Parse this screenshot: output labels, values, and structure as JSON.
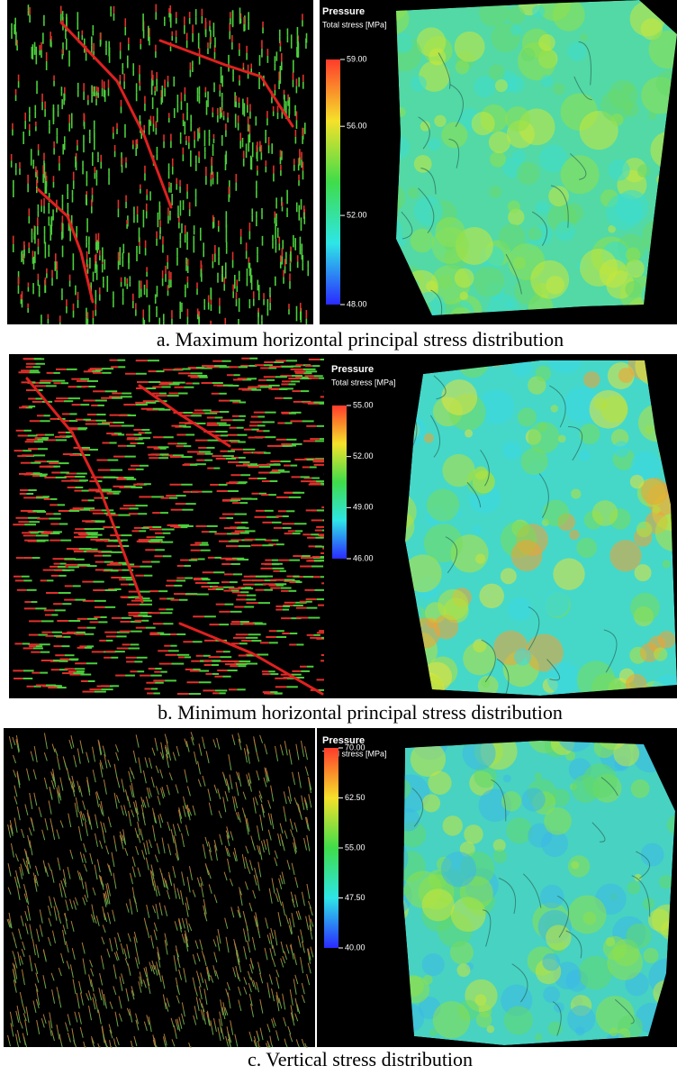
{
  "panels": [
    {
      "caption": "a. Maximum horizontal principal stress distribution",
      "legend": {
        "title": "Pressure",
        "subtitle": "Total stress [MPa]",
        "ticks": [
          {
            "value": 59,
            "label": "59.00"
          },
          {
            "value": 56,
            "label": "56.00"
          },
          {
            "value": 52,
            "label": "52.00"
          },
          {
            "value": 48,
            "label": "48.00"
          }
        ]
      }
    },
    {
      "caption": "b. Minimum horizontal principal stress distribution",
      "legend": {
        "title": "Pressure",
        "subtitle": "Total stress [MPa]",
        "ticks": [
          {
            "value": 55,
            "label": "55.00"
          },
          {
            "value": 52,
            "label": "52.00"
          },
          {
            "value": 49,
            "label": "49.00"
          },
          {
            "value": 46,
            "label": "46.00"
          }
        ]
      }
    },
    {
      "caption": "c. Vertical stress distribution",
      "legend": {
        "title": "Pressure",
        "subtitle": "Total stress [MPa]",
        "ticks": [
          {
            "value": 70,
            "label": "70.00"
          },
          {
            "value": 62.5,
            "label": "62.50"
          },
          {
            "value": 55,
            "label": "55.00"
          },
          {
            "value": 47.5,
            "label": "47.50"
          },
          {
            "value": 40,
            "label": "40.00"
          }
        ]
      }
    }
  ]
}
